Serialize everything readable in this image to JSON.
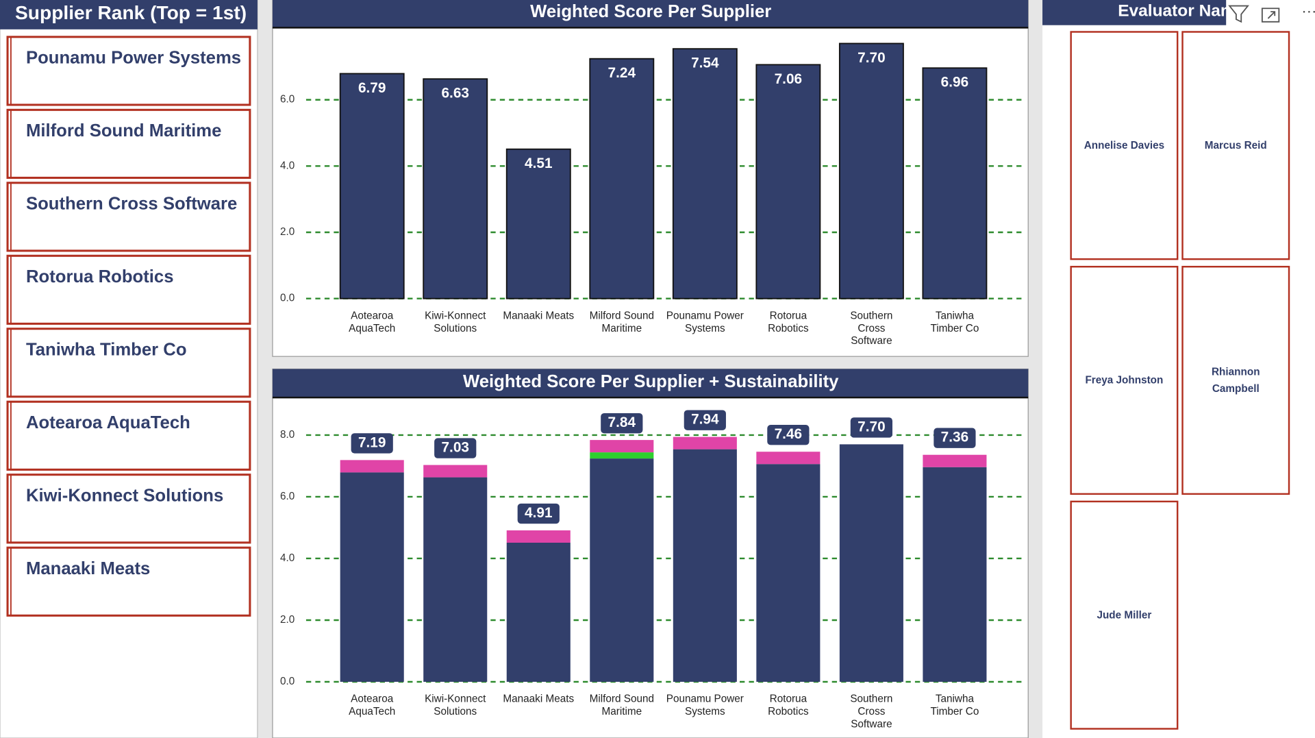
{
  "sidebar": {
    "title": "Supplier Rank (Top = 1st)",
    "items": [
      "Pounamu Power Systems",
      "Milford Sound Maritime",
      "Southern Cross Software",
      "Rotorua Robotics",
      "Taniwha Timber Co",
      "Aotearoa AquaTech",
      "Kiwi-Konnect Solutions",
      "Manaaki Meats"
    ]
  },
  "chart_data": [
    {
      "type": "bar",
      "title": "Weighted Score Per Supplier",
      "categories": [
        "Aotearoa AquaTech",
        "Kiwi-Konnect Solutions",
        "Manaaki Meats",
        "Milford Sound Maritime",
        "Pounamu Power Systems",
        "Rotorua Robotics",
        "Southern Cross Software",
        "Taniwha Timber Co"
      ],
      "values": [
        6.79,
        6.63,
        4.51,
        7.24,
        7.54,
        7.06,
        7.7,
        6.96
      ],
      "value_labels": [
        "6.79",
        "6.63",
        "4.51",
        "7.24",
        "7.54",
        "7.06",
        "7.70",
        "6.96"
      ],
      "color": "#323f6b",
      "ylim": [
        0,
        8
      ],
      "yticks": [
        {
          "value": 0,
          "label": "0.0"
        },
        {
          "value": 2,
          "label": "2.0"
        },
        {
          "value": 4,
          "label": "4.0"
        },
        {
          "value": 6,
          "label": "6.0"
        }
      ],
      "grid": true
    },
    {
      "type": "stacked_bar",
      "title": "Weighted Score Per Supplier + Sustainability",
      "categories": [
        "Aotearoa AquaTech",
        "Kiwi-Konnect Solutions",
        "Manaaki Meats",
        "Milford Sound Maritime",
        "Pounamu Power Systems",
        "Rotorua Robotics",
        "Southern Cross Software",
        "Taniwha Timber Co"
      ],
      "series": [
        {
          "color": "#323f6b",
          "values": [
            6.79,
            6.63,
            4.51,
            7.24,
            7.54,
            7.06,
            7.7,
            6.96
          ]
        },
        {
          "color": "#2ed02e",
          "values": [
            0,
            0,
            0,
            0.2,
            0,
            0,
            0,
            0
          ]
        },
        {
          "color": "#e044a7",
          "values": [
            0.4,
            0.4,
            0.4,
            0.4,
            0.4,
            0.4,
            0,
            0.4
          ]
        }
      ],
      "totals": [
        7.19,
        7.03,
        4.91,
        7.84,
        7.94,
        7.46,
        7.7,
        7.36
      ],
      "total_labels": [
        "7.19",
        "7.03",
        "4.91",
        "7.84",
        "7.94",
        "7.46",
        "7.70",
        "7.36"
      ],
      "ylim": [
        0,
        9
      ],
      "yticks": [
        {
          "value": 0,
          "label": "0.0"
        },
        {
          "value": 2,
          "label": "2.0"
        },
        {
          "value": 4,
          "label": "4.0"
        },
        {
          "value": 6,
          "label": "6.0"
        },
        {
          "value": 8,
          "label": "8.0"
        }
      ],
      "grid": true
    }
  ],
  "evaluators": {
    "title": "Evaluator Name",
    "items": [
      "Annelise Davies",
      "Marcus Reid",
      "Freya Johnston",
      "Rhiannon Campbell",
      "Jude Miller"
    ]
  }
}
